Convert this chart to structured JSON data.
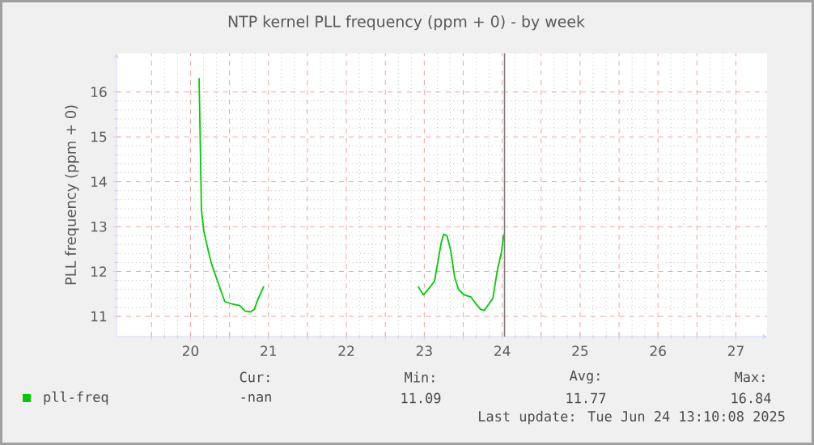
{
  "chart_data": {
    "type": "line",
    "title": "NTP kernel PLL frequency (ppm + 0) - by week",
    "ylabel": "PLL frequency (ppm + 0)",
    "xlim": [
      19.05,
      27.4
    ],
    "ylim": [
      10.55,
      16.86
    ],
    "xticks": [
      {
        "value": 19.5,
        "label": null
      },
      20,
      {
        "value": 20.5,
        "label": null
      },
      21,
      {
        "value": 21.5,
        "label": null
      },
      22,
      {
        "value": 22.5,
        "label": null
      },
      23,
      {
        "value": 23.5,
        "label": null
      },
      24,
      {
        "value": 24.5,
        "label": null
      },
      25,
      {
        "value": 25.5,
        "label": null
      },
      26,
      {
        "value": 26.5,
        "label": null
      },
      27
    ],
    "yticks": [
      11,
      12,
      13,
      14,
      15,
      16
    ],
    "grid": true,
    "legend": "bottom",
    "marker": "none",
    "line_style": "solid",
    "ref_lines": [
      {
        "axis": "x",
        "value": 24.03,
        "color": "#7f7f7f"
      }
    ],
    "series": [
      {
        "name": "pll-freq",
        "color": "#00cc00",
        "x": [
          20.11,
          20.14,
          20.17,
          20.25,
          20.28,
          20.375,
          20.44,
          20.53,
          20.63,
          20.7,
          20.77,
          20.82,
          20.86,
          20.94,
          null,
          22.92,
          22.99,
          23.04,
          23.13,
          23.22,
          23.25,
          23.29,
          23.34,
          23.39,
          23.44,
          23.51,
          23.6,
          23.65,
          23.72,
          23.77,
          23.83,
          23.88,
          23.94,
          23.99,
          24.02
        ],
        "values": [
          16.31,
          13.37,
          12.9,
          12.3,
          12.12,
          11.64,
          11.33,
          11.28,
          11.24,
          11.12,
          11.1,
          11.16,
          11.36,
          11.67,
          null,
          11.67,
          11.48,
          11.58,
          11.78,
          12.66,
          12.83,
          12.8,
          12.47,
          11.87,
          11.6,
          11.48,
          11.43,
          11.31,
          11.16,
          11.13,
          11.28,
          11.4,
          12.05,
          12.42,
          12.83
        ]
      }
    ],
    "annotations": [
      "Cur:",
      "-nan",
      "Min:",
      "11.09",
      "Avg:",
      "11.77",
      "Max:",
      "16.84",
      "Last update: Tue Jun 24 13:10:08 2025"
    ]
  }
}
